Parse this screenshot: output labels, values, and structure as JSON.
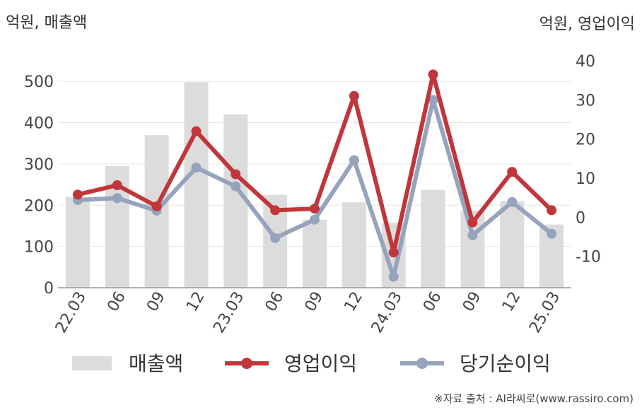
{
  "left_unit": "억원, 매출액",
  "right_unit": "억원, 영업이익",
  "source": "※자료 출처 : AI라씨로(www.rassiro.com)",
  "colors": {
    "bar": "#dcdcdc",
    "op": "#c0363a",
    "net": "#96a3bc",
    "grid": "#e6e6e6",
    "axis": "#999999"
  },
  "chart_data": {
    "type": "bar+line",
    "categories": [
      "22.03",
      "06",
      "09",
      "12",
      "23.03",
      "06",
      "09",
      "12",
      "24.03",
      "06",
      "09",
      "12",
      "25.03"
    ],
    "left_axis": {
      "ylim": [
        0,
        550
      ],
      "ticks": [
        0,
        100,
        200,
        300,
        400,
        500
      ],
      "unit": "억원, 매출액"
    },
    "right_axis": {
      "ylim": [
        -18,
        40
      ],
      "ticks": [
        -10,
        0,
        10,
        20,
        30,
        40
      ],
      "unit": "억원, 영업이익"
    },
    "series": [
      {
        "name": "매출액",
        "type": "bar",
        "axis": "left",
        "values": [
          220,
          295,
          370,
          498,
          420,
          225,
          165,
          207,
          158,
          237,
          187,
          210,
          153
        ]
      },
      {
        "name": "영업이익",
        "type": "line",
        "axis": "right",
        "values": [
          5.8,
          8.2,
          2.8,
          22.0,
          11.0,
          1.8,
          2.2,
          31.0,
          -9.0,
          36.5,
          -1.3,
          11.6,
          1.8
        ]
      },
      {
        "name": "당기순이익",
        "type": "line",
        "axis": "right",
        "values": [
          4.4,
          4.9,
          1.7,
          12.7,
          7.9,
          -5.3,
          -0.6,
          14.6,
          -15.2,
          30.0,
          -4.6,
          3.9,
          -4.2
        ]
      }
    ],
    "legend": [
      "매출액",
      "영업이익",
      "당기순이익"
    ],
    "legend_position": "bottom",
    "grid": true
  }
}
